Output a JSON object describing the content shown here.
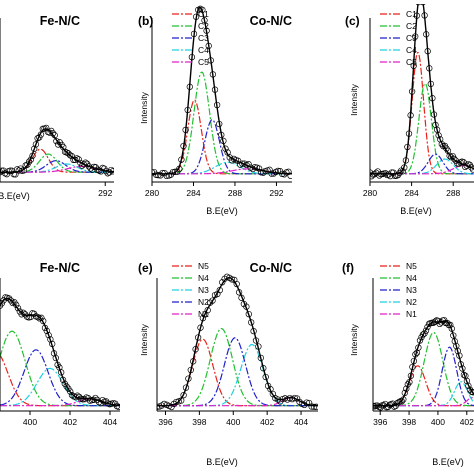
{
  "figure": {
    "style": {
      "background": "#ffffff",
      "axis_color": "#000000",
      "envelope_color": "#000000",
      "marker_color": "#000000"
    }
  },
  "chart_data": [
    {
      "id": "a",
      "type": "line",
      "panel_label": "",
      "title": "Fe-N/C",
      "xlabel": "B.E(eV)",
      "ylabel": "",
      "xlim": [
        280,
        293
      ],
      "xticks": [
        "292"
      ],
      "xtick_values": [
        292
      ],
      "baseline": 0.06,
      "legend": [],
      "peaks": [
        {
          "name": "C1",
          "center": 284.6,
          "height": 0.14,
          "width": 0.9,
          "color": "#e8231b",
          "dash": "7 2 2 2"
        },
        {
          "name": "C2",
          "center": 285.5,
          "height": 0.11,
          "width": 1.0,
          "color": "#22c030",
          "dash": "7 2 2 2"
        },
        {
          "name": "C3",
          "center": 286.4,
          "height": 0.07,
          "width": 1.1,
          "color": "#2222cc",
          "dash": "7 2 2 2"
        },
        {
          "name": "C4",
          "center": 287.6,
          "height": 0.05,
          "width": 1.2,
          "color": "#20d0e0",
          "dash": "7 2 2 2"
        },
        {
          "name": "C5",
          "center": 289.3,
          "height": 0.035,
          "width": 1.6,
          "color": "#e020c8",
          "dash": "7 2 2 2"
        }
      ]
    },
    {
      "id": "b",
      "type": "line",
      "panel_label": "(b)",
      "title": "Co-N/C",
      "xlabel": "B.E(eV)",
      "ylabel": "Intensity",
      "xlim": [
        280,
        293.5
      ],
      "xticks": [
        "280",
        "284",
        "288",
        "292"
      ],
      "xtick_values": [
        280,
        284,
        288,
        292
      ],
      "baseline": 0.05,
      "legend": [
        {
          "label": "C1",
          "color": "#e8231b",
          "dash": "7 2 2 2"
        },
        {
          "label": "C2",
          "color": "#22c030",
          "dash": "7 2 2 2"
        },
        {
          "label": "C3",
          "color": "#2222cc",
          "dash": "7 2 2 2"
        },
        {
          "label": "C4",
          "color": "#20d0e0",
          "dash": "7 2 2 2"
        },
        {
          "label": "C5",
          "color": "#e020c8",
          "dash": "7 2 2 2"
        }
      ],
      "peaks": [
        {
          "name": "C1",
          "center": 284.1,
          "height": 0.45,
          "width": 0.65,
          "color": "#e8231b",
          "dash": "7 2 2 2"
        },
        {
          "name": "C2",
          "center": 284.8,
          "height": 0.62,
          "width": 0.75,
          "color": "#22c030",
          "dash": "7 2 2 2"
        },
        {
          "name": "C3",
          "center": 285.8,
          "height": 0.33,
          "width": 0.7,
          "color": "#2222cc",
          "dash": "7 2 2 2"
        },
        {
          "name": "C4",
          "center": 287.3,
          "height": 0.07,
          "width": 1.2,
          "color": "#20d0e0",
          "dash": "7 2 2 2"
        },
        {
          "name": "C5",
          "center": 289.2,
          "height": 0.03,
          "width": 1.5,
          "color": "#e020c8",
          "dash": "7 2 2 2"
        }
      ]
    },
    {
      "id": "c",
      "type": "line",
      "panel_label": "(c)",
      "title": "",
      "xlabel": "B.E(eV)",
      "ylabel": "Intensity",
      "xlim": [
        280,
        290
      ],
      "xticks": [
        "280",
        "284",
        "288"
      ],
      "xtick_values": [
        280,
        284,
        288
      ],
      "baseline": 0.05,
      "legend": [
        {
          "label": "C1",
          "color": "#e8231b",
          "dash": "7 2 2 2"
        },
        {
          "label": "C2",
          "color": "#22c030",
          "dash": "7 2 2 2"
        },
        {
          "label": "C3",
          "color": "#2222cc",
          "dash": "7 2 2 2"
        },
        {
          "label": "C4",
          "color": "#20d0e0",
          "dash": "7 2 2 2"
        },
        {
          "label": "C5",
          "color": "#e020c8",
          "dash": "7 2 2 2"
        }
      ],
      "peaks": [
        {
          "name": "C1",
          "center": 284.6,
          "height": 0.74,
          "width": 0.55,
          "color": "#e8231b",
          "dash": "7 2 2 2"
        },
        {
          "name": "C2",
          "center": 285.3,
          "height": 0.55,
          "width": 0.6,
          "color": "#22c030",
          "dash": "7 2 2 2"
        },
        {
          "name": "C3",
          "center": 286.3,
          "height": 0.12,
          "width": 0.7,
          "color": "#2222cc",
          "dash": "7 2 2 2"
        },
        {
          "name": "C4",
          "center": 287.2,
          "height": 0.09,
          "width": 0.8,
          "color": "#20d0e0",
          "dash": "7 2 2 2"
        },
        {
          "name": "C5",
          "center": 289.0,
          "height": 0.05,
          "width": 1.0,
          "color": "#e020c8",
          "dash": "7 2 2 2"
        }
      ]
    },
    {
      "id": "d",
      "type": "line",
      "panel_label": "",
      "title": "Fe-N/C",
      "xlabel": "",
      "ylabel": "",
      "xlim": [
        398.5,
        404.5
      ],
      "xticks": [
        "400",
        "402",
        "404"
      ],
      "xtick_values": [
        400,
        402,
        404
      ],
      "baseline": 0.04,
      "legend": [],
      "peaks": [
        {
          "name": "N5",
          "center": 398.3,
          "height": 0.4,
          "width": 0.6,
          "color": "#e8231b",
          "dash": "7 2 2 2"
        },
        {
          "name": "N4",
          "center": 399.1,
          "height": 0.56,
          "width": 0.65,
          "color": "#22c030",
          "dash": "7 2 2 2"
        },
        {
          "name": "N3",
          "center": 401.0,
          "height": 0.28,
          "width": 0.65,
          "color": "#20d0e0",
          "dash": "7 2 2 2"
        },
        {
          "name": "N2",
          "center": 400.3,
          "height": 0.42,
          "width": 0.6,
          "color": "#2222cc",
          "dash": "7 2 2 2"
        },
        {
          "name": "N1",
          "center": 403.0,
          "height": 0.05,
          "width": 0.6,
          "color": "#e020c8",
          "dash": "7 2 2 2"
        }
      ]
    },
    {
      "id": "e",
      "type": "line",
      "panel_label": "(e)",
      "title": "Co-N/C",
      "xlabel": "B.E(eV)",
      "ylabel": "Intensity",
      "xlim": [
        395.5,
        405
      ],
      "xticks": [
        "396",
        "398",
        "400",
        "402",
        "404"
      ],
      "xtick_values": [
        396,
        398,
        400,
        402,
        404
      ],
      "baseline": 0.04,
      "legend": [
        {
          "label": "N5",
          "color": "#e8231b",
          "dash": "7 2 2 2"
        },
        {
          "label": "N4",
          "color": "#22c030",
          "dash": "7 2 2 2"
        },
        {
          "label": "N3",
          "color": "#20d0e0",
          "dash": "7 2 2 2"
        },
        {
          "label": "N2",
          "color": "#2222cc",
          "dash": "7 2 2 2"
        },
        {
          "label": "N1",
          "color": "#e020c8",
          "dash": "7 2 2 2"
        }
      ],
      "peaks": [
        {
          "name": "N5",
          "center": 398.2,
          "height": 0.5,
          "width": 0.6,
          "color": "#e8231b",
          "dash": "7 2 2 2"
        },
        {
          "name": "N4",
          "center": 399.3,
          "height": 0.58,
          "width": 0.65,
          "color": "#22c030",
          "dash": "7 2 2 2"
        },
        {
          "name": "N3",
          "center": 401.1,
          "height": 0.46,
          "width": 0.65,
          "color": "#20d0e0",
          "dash": "7 2 2 2"
        },
        {
          "name": "N2",
          "center": 400.1,
          "height": 0.51,
          "width": 0.62,
          "color": "#2222cc",
          "dash": "7 2 2 2"
        },
        {
          "name": "N1",
          "center": 403.4,
          "height": 0.06,
          "width": 0.5,
          "color": "#e020c8",
          "dash": "7 2 2 2"
        }
      ]
    },
    {
      "id": "f",
      "type": "line",
      "panel_label": "(f)",
      "title": "",
      "xlabel": "B.E(eV)",
      "ylabel": "Intensity",
      "xlim": [
        395.5,
        402.5
      ],
      "xticks": [
        "396",
        "398",
        "400",
        "402"
      ],
      "xtick_values": [
        396,
        398,
        400,
        402
      ],
      "baseline": 0.04,
      "legend": [
        {
          "label": "N5",
          "color": "#e8231b",
          "dash": "7 2 2 2"
        },
        {
          "label": "N4",
          "color": "#22c030",
          "dash": "7 2 2 2"
        },
        {
          "label": "N3",
          "color": "#2222cc",
          "dash": "7 2 2 2"
        },
        {
          "label": "N2",
          "color": "#20d0e0",
          "dash": "7 2 2 2"
        },
        {
          "label": "N1",
          "color": "#e020c8",
          "dash": "7 2 2 2"
        }
      ],
      "peaks": [
        {
          "name": "N5",
          "center": 398.6,
          "height": 0.3,
          "width": 0.55,
          "color": "#e8231b",
          "dash": "7 2 2 2"
        },
        {
          "name": "N4",
          "center": 399.7,
          "height": 0.55,
          "width": 0.65,
          "color": "#22c030",
          "dash": "7 2 2 2"
        },
        {
          "name": "N3",
          "center": 400.8,
          "height": 0.44,
          "width": 0.5,
          "color": "#2222cc",
          "dash": "7 2 2 2"
        },
        {
          "name": "N2",
          "center": 401.6,
          "height": 0.18,
          "width": 0.45,
          "color": "#20d0e0",
          "dash": "7 2 2 2"
        },
        {
          "name": "N1",
          "center": 402.4,
          "height": 0.06,
          "width": 0.4,
          "color": "#e020c8",
          "dash": "7 2 2 2"
        }
      ]
    }
  ]
}
